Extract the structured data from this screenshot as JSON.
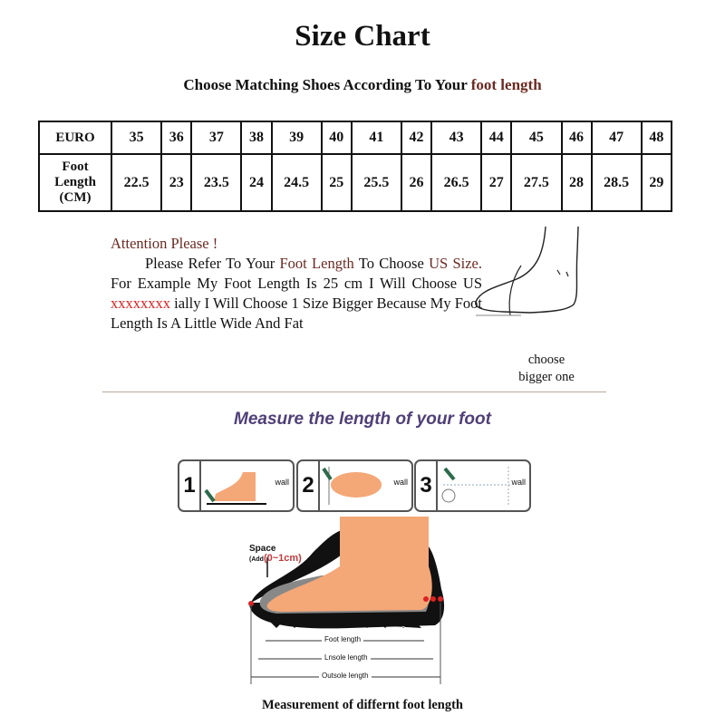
{
  "title": "Size Chart",
  "subtitle": {
    "prefix": "Choose Matching Shoes According To Your ",
    "highlight": "foot length"
  },
  "size_table": {
    "row_headers": [
      "EURO",
      "Foot Length (CM)"
    ],
    "euro": [
      "35",
      "36",
      "37",
      "38",
      "39",
      "40",
      "41",
      "42",
      "43",
      "44",
      "45",
      "46",
      "47",
      "48"
    ],
    "foot_length_cm": [
      "22.5",
      "23",
      "23.5",
      "24",
      "24.5",
      "25",
      "25.5",
      "26",
      "26.5",
      "27",
      "27.5",
      "28",
      "28.5",
      "29"
    ]
  },
  "attention": {
    "heading": "Attention Please !",
    "t1": "Please Refer To Your ",
    "t2": "Foot Length",
    "t3": " To Choose ",
    "t4": "US Size.",
    "t5": " For Example My Foot Length Is 25 cm I Will Choose US ",
    "t6": "xxxxxxxx",
    "t7": " ially I Will Choose 1 Size Bigger Because My Foot Length Is A Little Wide And Fat"
  },
  "choose_note": {
    "line1": "choose",
    "line2": "bigger one"
  },
  "measure_heading": "Measure the length of your foot",
  "steps": [
    {
      "number": "1",
      "label": "wall"
    },
    {
      "number": "2",
      "label": "wall"
    },
    {
      "number": "3",
      "label": "wall"
    }
  ],
  "diagram": {
    "space": "Space",
    "add_prefix": "(Add",
    "add_value": "(0~1cm)",
    "foot_length": "Foot length",
    "insole_length": "Lnsole length",
    "outsole_length": "Outsole length"
  },
  "footer_caption": "Measurement of differnt foot length",
  "colors": {
    "accent_brown": "#6b2a22",
    "heading_purple": "#4f3f78",
    "skin": "#f4a777",
    "red": "#d22222"
  }
}
